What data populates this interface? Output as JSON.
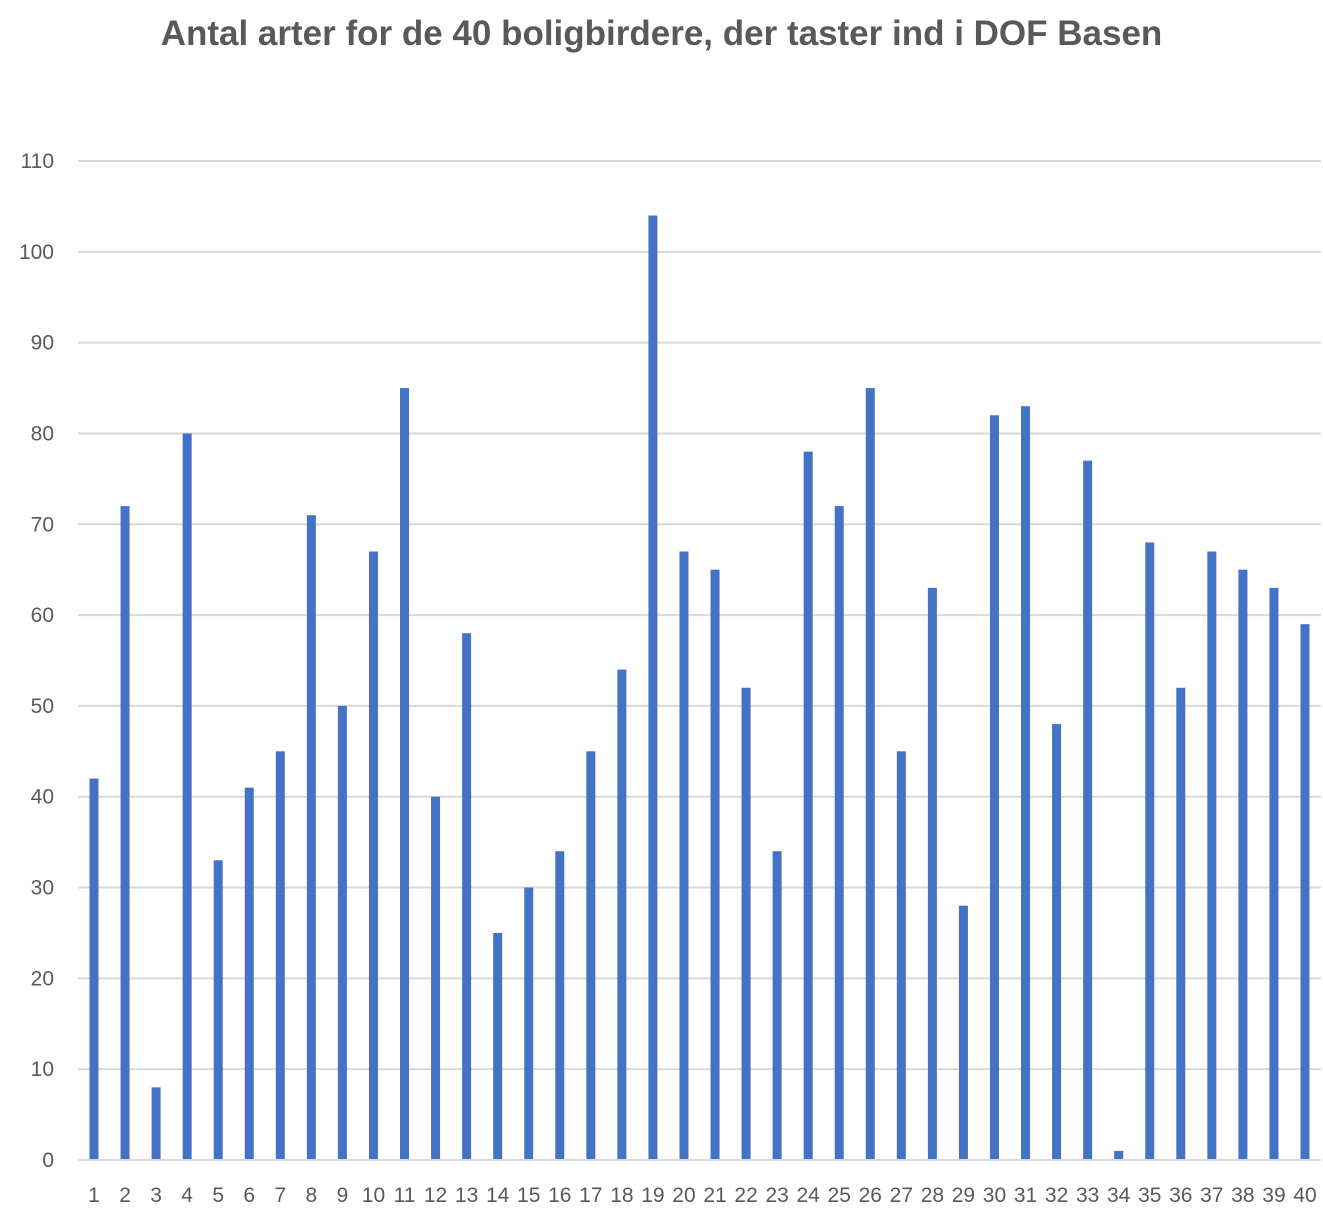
{
  "chart_data": {
    "type": "bar",
    "title": "Antal arter for de 40 boligbirdere, der taster ind i DOF Basen",
    "xlabel": "",
    "ylabel": "",
    "ylim": [
      0,
      110
    ],
    "yticks": [
      0,
      10,
      20,
      30,
      40,
      50,
      60,
      70,
      80,
      90,
      100,
      110
    ],
    "grid": true,
    "legend": "none",
    "color": "#4472c4",
    "categories": [
      "1",
      "2",
      "3",
      "4",
      "5",
      "6",
      "7",
      "8",
      "9",
      "10",
      "11",
      "12",
      "13",
      "14",
      "15",
      "16",
      "17",
      "18",
      "19",
      "20",
      "21",
      "22",
      "23",
      "24",
      "25",
      "26",
      "27",
      "28",
      "29",
      "30",
      "31",
      "32",
      "33",
      "34",
      "35",
      "36",
      "37",
      "38",
      "39",
      "40"
    ],
    "values": [
      42,
      72,
      8,
      80,
      33,
      41,
      45,
      71,
      50,
      67,
      85,
      40,
      58,
      25,
      30,
      34,
      45,
      54,
      104,
      67,
      65,
      52,
      34,
      78,
      72,
      85,
      45,
      63,
      28,
      82,
      83,
      48,
      77,
      1,
      68,
      52,
      67,
      65,
      63,
      59
    ]
  }
}
